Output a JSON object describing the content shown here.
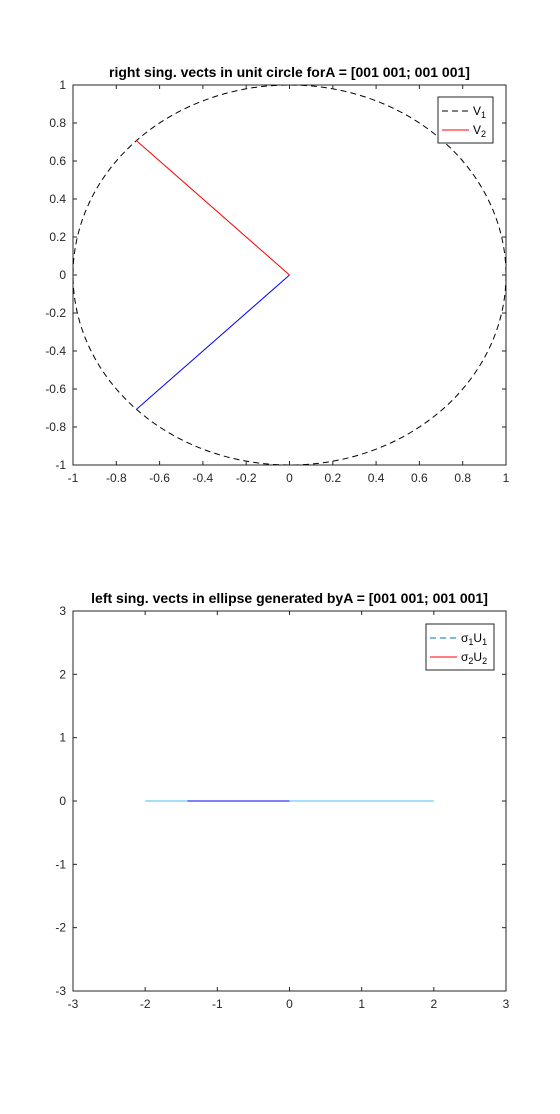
{
  "chart_data": [
    {
      "type": "line",
      "title": "right sing. vects in unit circle forA = [001 001; 001 001]",
      "xlabel": "",
      "ylabel": "",
      "xlim": [
        -1,
        1
      ],
      "ylim": [
        -1,
        1
      ],
      "xticks": [
        "-1",
        "-0.8",
        "-0.6",
        "-0.4",
        "-0.2",
        "0",
        "0.2",
        "0.4",
        "0.6",
        "0.8",
        "1"
      ],
      "yticks": [
        "-1",
        "-0.8",
        "-0.6",
        "-0.4",
        "-0.2",
        "0",
        "0.2",
        "0.4",
        "0.6",
        "0.8",
        "1"
      ],
      "grid": false,
      "legend_position": "top-right",
      "legend": [
        {
          "main": "V",
          "sub": "1",
          "color": "#000000",
          "style": "dashed"
        },
        {
          "main": "V",
          "sub": "2",
          "color": "#ff0000",
          "style": "solid"
        }
      ],
      "series": [
        {
          "kind": "unit-circle",
          "color": "#000000",
          "style": "dashed",
          "radius": 1
        },
        {
          "kind": "segment",
          "color": "#0000ff",
          "style": "solid",
          "x": [
            0,
            -0.7071
          ],
          "y": [
            0,
            -0.7071
          ]
        },
        {
          "kind": "segment",
          "color": "#ff0000",
          "style": "solid",
          "x": [
            0,
            -0.7071
          ],
          "y": [
            0,
            0.7071
          ]
        }
      ]
    },
    {
      "type": "line",
      "title": "left sing. vects in ellipse generated byA = [001 001; 001 001]",
      "xlabel": "",
      "ylabel": "",
      "xlim": [
        -3,
        3
      ],
      "ylim": [
        -3,
        3
      ],
      "xticks": [
        "-3",
        "-2",
        "-1",
        "0",
        "1",
        "2",
        "3"
      ],
      "yticks": [
        "-3",
        "-2",
        "-1",
        "0",
        "1",
        "2",
        "3"
      ],
      "grid": false,
      "legend_position": "top-right",
      "legend": [
        {
          "main": "σ",
          "sub": "1",
          "main2": "U",
          "sub2": "1",
          "color": "#0072bd",
          "style": "dashed"
        },
        {
          "main": "σ",
          "sub": "2",
          "main2": "U",
          "sub2": "2",
          "color": "#ff0000",
          "style": "solid"
        }
      ],
      "series": [
        {
          "kind": "segment",
          "color": "#4dbeee",
          "style": "solid",
          "x": [
            -2,
            2
          ],
          "y": [
            0,
            0
          ]
        },
        {
          "kind": "segment",
          "color": "#0000ff",
          "style": "solid",
          "x": [
            -1.4142,
            0
          ],
          "y": [
            0,
            0
          ]
        }
      ]
    }
  ]
}
